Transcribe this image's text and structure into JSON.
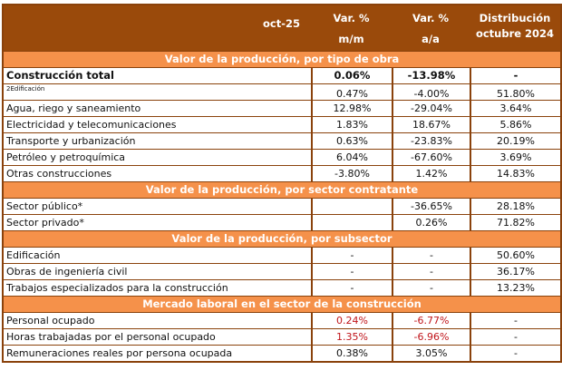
{
  "header": {
    "period": "oct-25",
    "col_mm": [
      "Var. %",
      "m/m"
    ],
    "col_aa": [
      "Var. %",
      "a/a"
    ],
    "col_dist": [
      "Distribución",
      "octubre 2024"
    ]
  },
  "sections": [
    {
      "title": "Valor de la producción, por tipo de obra",
      "rows": [
        {
          "label": "Construcción total",
          "mm": "0.06%",
          "aa": "-13.98%",
          "dist": "-",
          "bold": true
        },
        {
          "label": "2Edificación",
          "mm": "0.47%",
          "aa": "-4.00%",
          "dist": "51.80%",
          "small": true
        },
        {
          "label": "Agua, riego y saneamiento",
          "mm": "12.98%",
          "aa": "-29.04%",
          "dist": "3.64%"
        },
        {
          "label": "Electricidad y telecomunicaciones",
          "mm": "1.83%",
          "aa": "18.67%",
          "dist": "5.86%"
        },
        {
          "label": "Transporte y urbanización",
          "mm": "0.63%",
          "aa": "-23.83%",
          "dist": "20.19%"
        },
        {
          "label": "Petróleo y petroquímica",
          "mm": "6.04%",
          "aa": "-67.60%",
          "dist": "3.69%"
        },
        {
          "label": "Otras construcciones",
          "mm": "-3.80%",
          "aa": "1.42%",
          "dist": "14.83%"
        }
      ]
    },
    {
      "title": "Valor de la producción, por sector contratante",
      "rows": [
        {
          "label": "Sector público*",
          "mm": "",
          "aa": "-36.65%",
          "dist": "28.18%"
        },
        {
          "label": "Sector privado*",
          "mm": "",
          "aa": "0.26%",
          "dist": "71.82%"
        }
      ]
    },
    {
      "title": "Valor de la producción, por subsector",
      "rows": [
        {
          "label": "Edificación",
          "mm": "-",
          "aa": "-",
          "dist": "50.60%"
        },
        {
          "label": "Obras de ingeniería civil",
          "mm": "-",
          "aa": "-",
          "dist": "36.17%"
        },
        {
          "label": "Trabajos especializados para la construcción",
          "mm": "-",
          "aa": "-",
          "dist": "13.23%"
        }
      ]
    },
    {
      "title": "Mercado laboral en el sector de la construcción",
      "rows": [
        {
          "label": "Personal ocupado",
          "mm": "0.24%",
          "aa": "-6.77%",
          "dist": "-",
          "red": true
        },
        {
          "label": "Horas trabajadas por el personal ocupado",
          "mm": "1.35%",
          "aa": "-6.96%",
          "dist": "-",
          "red": true
        },
        {
          "label": "Remuneraciones reales por persona ocupada",
          "mm": "0.38%",
          "aa": "3.05%",
          "dist": "-"
        }
      ]
    }
  ],
  "colors": {
    "header": "#9a4a0b",
    "band": "#f5914a",
    "border": "#8a420c",
    "negative_highlight": "#c0151b"
  }
}
